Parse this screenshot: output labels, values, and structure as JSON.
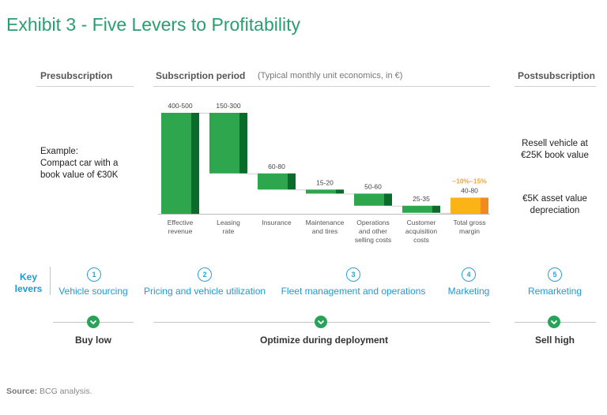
{
  "title": "Exhibit 3 - Five Levers to Profitability",
  "columns": {
    "pre": "Presubscription",
    "sub": "Subscription period",
    "sub_note": "(Typical monthly unit economics, in €)",
    "post": "Postsubscription"
  },
  "presub_example": {
    "line1": "Example:",
    "line2": "Compact car with a",
    "line3": "book value of €30K"
  },
  "postsub": {
    "resell_line1": "Resell vehicle at",
    "resell_line2": "€25K book value",
    "asset_line1": "€5K asset value",
    "asset_line2": "depreciation"
  },
  "chart_data": {
    "type": "bar",
    "subtype": "waterfall",
    "unit": "€ per month",
    "categories": [
      [
        "Effective",
        "revenue"
      ],
      [
        "Leasing",
        "rate"
      ],
      [
        "Insurance"
      ],
      [
        "Maintenance",
        "and tires"
      ],
      [
        "Operations",
        "and other",
        "selling costs"
      ],
      [
        "Customer",
        "acquisition",
        "costs"
      ],
      [
        "Total gross",
        "margin"
      ]
    ],
    "range_labels": [
      "400-500",
      "150-300",
      "60-80",
      "15-20",
      "50-60",
      "25-35",
      "40-80"
    ],
    "bars": [
      {
        "kind": "total",
        "low": 400,
        "high": 500
      },
      {
        "kind": "decrease",
        "low": 150,
        "high": 300
      },
      {
        "kind": "decrease",
        "low": 60,
        "high": 80
      },
      {
        "kind": "decrease",
        "low": 15,
        "high": 20
      },
      {
        "kind": "decrease",
        "low": 50,
        "high": 60
      },
      {
        "kind": "decrease",
        "low": 25,
        "high": 35
      },
      {
        "kind": "result",
        "low": 40,
        "high": 80
      }
    ],
    "margin_annotation": "~10%–15%",
    "colors": {
      "bar": "#2ea64e",
      "range_band": "#0b6b2a",
      "margin": "#fbb316",
      "margin_band": "#f08a1e",
      "annotation": "#f5a623"
    }
  },
  "key_levers_label": [
    "Key",
    "levers"
  ],
  "levers": [
    {
      "num": "1",
      "label": "Vehicle sourcing"
    },
    {
      "num": "2",
      "label": "Pricing and vehicle utilization"
    },
    {
      "num": "3",
      "label": "Fleet management and operations"
    },
    {
      "num": "4",
      "label": "Marketing"
    },
    {
      "num": "5",
      "label": "Remarketing"
    }
  ],
  "phases": [
    {
      "label": "Buy low",
      "icon": "chevron-down-icon"
    },
    {
      "label": "Optimize during deployment",
      "icon": "chevron-down-icon"
    },
    {
      "label": "Sell high",
      "icon": "chevron-down-icon"
    }
  ],
  "source": {
    "label": "Source:",
    "text": "BCG analysis."
  }
}
